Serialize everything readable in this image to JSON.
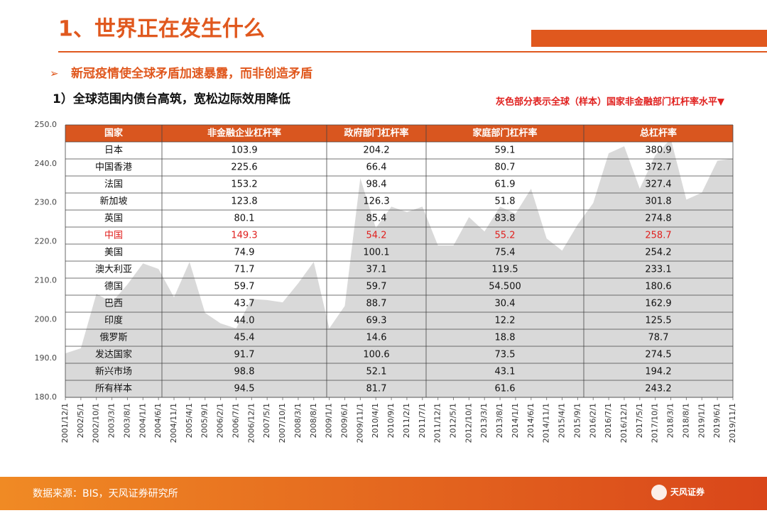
{
  "title": "1、世界正在发生什么",
  "bullet": "新冠疫情使全球矛盾加速暴露，而非创造矛盾",
  "section": "1）全球范围内债台高筑，宽松边际效用降低",
  "note": "灰色部分表示全球（样本）国家非金融部门杠杆率水平▼",
  "source": "数据来源：BIS，天风证券研究所",
  "logo": "天风证券",
  "chart_data": {
    "type": "area",
    "color": "#d9d9d9",
    "categories": [
      "2001/12/1",
      "2002/5/1",
      "2002/10/1",
      "2003/3/1",
      "2003/8/1",
      "2004/1/1",
      "2004/6/1",
      "2004/11/1",
      "2005/4/1",
      "2005/9/1",
      "2006/2/1",
      "2006/7/1",
      "2006/12/1",
      "2007/5/1",
      "2007/10/1",
      "2008/3/1",
      "2008/8/1",
      "2009/1/1",
      "2009/6/1",
      "2009/11/1",
      "2010/4/1",
      "2010/9/1",
      "2011/2/1",
      "2011/7/1",
      "2011/12/1",
      "2012/5/1",
      "2012/10/1",
      "2013/3/1",
      "2013/8/1",
      "2014/1/1",
      "2014/6/1",
      "2014/11/1",
      "2015/4/1",
      "2015/9/1",
      "2016/2/1",
      "2016/7/1",
      "2016/12/1",
      "2017/5/1",
      "2017/10/1",
      "2018/3/1",
      "2018/8/1",
      "2019/1/1",
      "2019/6/1",
      "2019/11/1"
    ],
    "values": [
      191.3,
      192.6,
      206.6,
      204.4,
      209,
      214.4,
      213,
      205.7,
      214.8,
      201.7,
      199,
      197.7,
      205.3,
      205,
      204.4,
      209.3,
      214.8,
      197.7,
      203.5,
      236.3,
      223.5,
      229,
      227.6,
      229,
      219,
      219,
      226.3,
      222.6,
      229,
      227.2,
      233.6,
      220.8,
      217.7,
      224.4,
      229.9,
      242.7,
      244.5,
      233.6,
      242.2,
      246.4,
      230.8,
      232.6,
      240.8,
      241.3
    ],
    "ylim": [
      180,
      250
    ],
    "yticks": [
      {
        "value": 180,
        "label": "180.0"
      },
      {
        "value": 190,
        "label": "190.0"
      },
      {
        "value": 200,
        "label": "200.0"
      },
      {
        "value": 210,
        "label": "210.0"
      },
      {
        "value": 220,
        "label": "220.0"
      },
      {
        "value": 230,
        "label": "230.0"
      },
      {
        "value": 240,
        "label": "240.0"
      },
      {
        "value": 250,
        "label": "250.0"
      }
    ]
  },
  "table": {
    "header": [
      "国家",
      "非金融企业杠杆率",
      "政府部门杠杆率",
      "家庭部门杠杆率",
      "总杠杆率"
    ],
    "highlight_row": 5,
    "rows": [
      [
        "日本",
        "103.9",
        "204.2",
        "59.1",
        "380.9"
      ],
      [
        "中国香港",
        "225.6",
        "66.4",
        "80.7",
        "372.7"
      ],
      [
        "法国",
        "153.2",
        "98.4",
        "61.9",
        "327.4"
      ],
      [
        "新加坡",
        "123.8",
        "126.3",
        "51.8",
        "301.8"
      ],
      [
        "英国",
        "80.1",
        "85.4",
        "83.8",
        "274.8"
      ],
      [
        "中国",
        "149.3",
        "54.2",
        "55.2",
        "258.7"
      ],
      [
        "美国",
        "74.9",
        "100.1",
        "75.4",
        "254.2"
      ],
      [
        "澳大利亚",
        "71.7",
        "37.1",
        "119.5",
        "233.1"
      ],
      [
        "德国",
        "59.7",
        "59.7",
        "54.500",
        "180.6"
      ],
      [
        "巴西",
        "43.7",
        "88.7",
        "30.4",
        "162.9"
      ],
      [
        "印度",
        "44.0",
        "69.3",
        "12.2",
        "125.5"
      ],
      [
        "俄罗斯",
        "45.4",
        "14.6",
        "18.8",
        "78.7"
      ],
      [
        "发达国家",
        "91.7",
        "100.6",
        "73.5",
        "274.5"
      ],
      [
        "新兴市场",
        "98.8",
        "52.1",
        "43.1",
        "194.2"
      ],
      [
        "所有样本",
        "94.5",
        "81.7",
        "61.6",
        "243.2"
      ]
    ]
  }
}
